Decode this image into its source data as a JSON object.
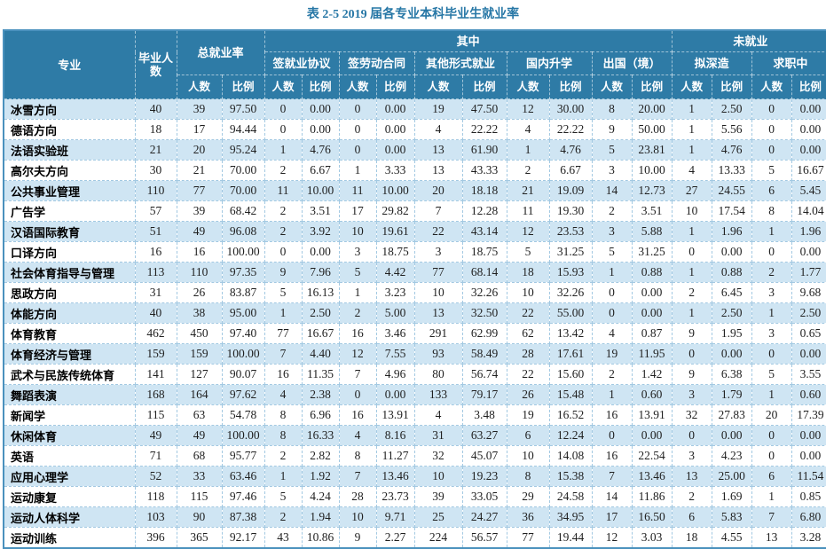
{
  "title": "表 2-5 2019 届各专业本科毕业生就业率",
  "colors": {
    "header_bg": "#2e7ba6",
    "header_text": "#ffffff",
    "row_alt_bg": "#cfe5f3",
    "row_bg": "#ffffff",
    "title_color": "#2777a6",
    "outer_border": "#4a91bd",
    "inner_border": "#a3c9e2"
  },
  "table": {
    "headers": {
      "major": "专业",
      "graduates": "毕业人数",
      "total_rate": "总就业率",
      "among": "其中",
      "unemployed": "未就业",
      "sub": [
        "签就业协议",
        "签劳动合同",
        "其他形式就业",
        "国内升学",
        "出国（境）",
        "拟深造",
        "求职中"
      ],
      "count": "人数",
      "ratio": "比例"
    },
    "rows": [
      {
        "major": "冰雪方向",
        "values": [
          "40",
          "39",
          "97.50",
          "0",
          "0.00",
          "0",
          "0.00",
          "19",
          "47.50",
          "12",
          "30.00",
          "8",
          "20.00",
          "1",
          "2.50",
          "0",
          "0.00"
        ]
      },
      {
        "major": "德语方向",
        "values": [
          "18",
          "17",
          "94.44",
          "0",
          "0.00",
          "0",
          "0.00",
          "4",
          "22.22",
          "4",
          "22.22",
          "9",
          "50.00",
          "1",
          "5.56",
          "0",
          "0.00"
        ]
      },
      {
        "major": "法语实验班",
        "values": [
          "21",
          "20",
          "95.24",
          "1",
          "4.76",
          "0",
          "0.00",
          "13",
          "61.90",
          "1",
          "4.76",
          "5",
          "23.81",
          "1",
          "4.76",
          "0",
          "0.00"
        ]
      },
      {
        "major": "高尔夫方向",
        "values": [
          "30",
          "21",
          "70.00",
          "2",
          "6.67",
          "1",
          "3.33",
          "13",
          "43.33",
          "2",
          "6.67",
          "3",
          "10.00",
          "4",
          "13.33",
          "5",
          "16.67"
        ]
      },
      {
        "major": "公共事业管理",
        "values": [
          "110",
          "77",
          "70.00",
          "11",
          "10.00",
          "11",
          "10.00",
          "20",
          "18.18",
          "21",
          "19.09",
          "14",
          "12.73",
          "27",
          "24.55",
          "6",
          "5.45"
        ]
      },
      {
        "major": "广告学",
        "values": [
          "57",
          "39",
          "68.42",
          "2",
          "3.51",
          "17",
          "29.82",
          "7",
          "12.28",
          "11",
          "19.30",
          "2",
          "3.51",
          "10",
          "17.54",
          "8",
          "14.04"
        ]
      },
      {
        "major": "汉语国际教育",
        "values": [
          "51",
          "49",
          "96.08",
          "2",
          "3.92",
          "10",
          "19.61",
          "22",
          "43.14",
          "12",
          "23.53",
          "3",
          "5.88",
          "1",
          "1.96",
          "1",
          "1.96"
        ]
      },
      {
        "major": "口译方向",
        "values": [
          "16",
          "16",
          "100.00",
          "0",
          "0.00",
          "3",
          "18.75",
          "3",
          "18.75",
          "5",
          "31.25",
          "5",
          "31.25",
          "0",
          "0.00",
          "0",
          "0.00"
        ]
      },
      {
        "major": "社会体育指导与管理",
        "values": [
          "113",
          "110",
          "97.35",
          "9",
          "7.96",
          "5",
          "4.42",
          "77",
          "68.14",
          "18",
          "15.93",
          "1",
          "0.88",
          "1",
          "0.88",
          "2",
          "1.77"
        ]
      },
      {
        "major": "思政方向",
        "values": [
          "31",
          "26",
          "83.87",
          "5",
          "16.13",
          "1",
          "3.23",
          "10",
          "32.26",
          "10",
          "32.26",
          "0",
          "0.00",
          "2",
          "6.45",
          "3",
          "9.68"
        ]
      },
      {
        "major": "体能方向",
        "values": [
          "40",
          "38",
          "95.00",
          "1",
          "2.50",
          "2",
          "5.00",
          "13",
          "32.50",
          "22",
          "55.00",
          "0",
          "0.00",
          "1",
          "2.50",
          "1",
          "2.50"
        ]
      },
      {
        "major": "体育教育",
        "values": [
          "462",
          "450",
          "97.40",
          "77",
          "16.67",
          "16",
          "3.46",
          "291",
          "62.99",
          "62",
          "13.42",
          "4",
          "0.87",
          "9",
          "1.95",
          "3",
          "0.65"
        ]
      },
      {
        "major": "体育经济与管理",
        "values": [
          "159",
          "159",
          "100.00",
          "7",
          "4.40",
          "12",
          "7.55",
          "93",
          "58.49",
          "28",
          "17.61",
          "19",
          "11.95",
          "0",
          "0.00",
          "0",
          "0.00"
        ]
      },
      {
        "major": "武术与民族传统体育",
        "values": [
          "141",
          "127",
          "90.07",
          "16",
          "11.35",
          "7",
          "4.96",
          "80",
          "56.74",
          "22",
          "15.60",
          "2",
          "1.42",
          "9",
          "6.38",
          "5",
          "3.55"
        ]
      },
      {
        "major": "舞蹈表演",
        "values": [
          "168",
          "164",
          "97.62",
          "4",
          "2.38",
          "0",
          "0.00",
          "133",
          "79.17",
          "26",
          "15.48",
          "1",
          "0.60",
          "3",
          "1.79",
          "1",
          "0.60"
        ]
      },
      {
        "major": "新闻学",
        "values": [
          "115",
          "63",
          "54.78",
          "8",
          "6.96",
          "16",
          "13.91",
          "4",
          "3.48",
          "19",
          "16.52",
          "16",
          "13.91",
          "32",
          "27.83",
          "20",
          "17.39"
        ]
      },
      {
        "major": "休闲体育",
        "values": [
          "49",
          "49",
          "100.00",
          "8",
          "16.33",
          "4",
          "8.16",
          "31",
          "63.27",
          "6",
          "12.24",
          "0",
          "0.00",
          "0",
          "0.00",
          "0",
          "0.00"
        ]
      },
      {
        "major": "英语",
        "values": [
          "71",
          "68",
          "95.77",
          "2",
          "2.82",
          "8",
          "11.27",
          "32",
          "45.07",
          "10",
          "14.08",
          "16",
          "22.54",
          "3",
          "4.23",
          "0",
          "0.00"
        ]
      },
      {
        "major": "应用心理学",
        "values": [
          "52",
          "33",
          "63.46",
          "1",
          "1.92",
          "7",
          "13.46",
          "10",
          "19.23",
          "8",
          "15.38",
          "7",
          "13.46",
          "13",
          "25.00",
          "6",
          "11.54"
        ]
      },
      {
        "major": "运动康复",
        "values": [
          "118",
          "115",
          "97.46",
          "5",
          "4.24",
          "28",
          "23.73",
          "39",
          "33.05",
          "29",
          "24.58",
          "14",
          "11.86",
          "2",
          "1.69",
          "1",
          "0.85"
        ]
      },
      {
        "major": "运动人体科学",
        "values": [
          "103",
          "90",
          "87.38",
          "2",
          "1.94",
          "10",
          "9.71",
          "25",
          "24.27",
          "36",
          "34.95",
          "17",
          "16.50",
          "6",
          "5.83",
          "7",
          "6.80"
        ]
      },
      {
        "major": "运动训练",
        "values": [
          "396",
          "365",
          "92.17",
          "43",
          "10.86",
          "9",
          "2.27",
          "224",
          "56.57",
          "77",
          "19.44",
          "12",
          "3.03",
          "18",
          "4.55",
          "13",
          "3.28"
        ]
      }
    ]
  }
}
